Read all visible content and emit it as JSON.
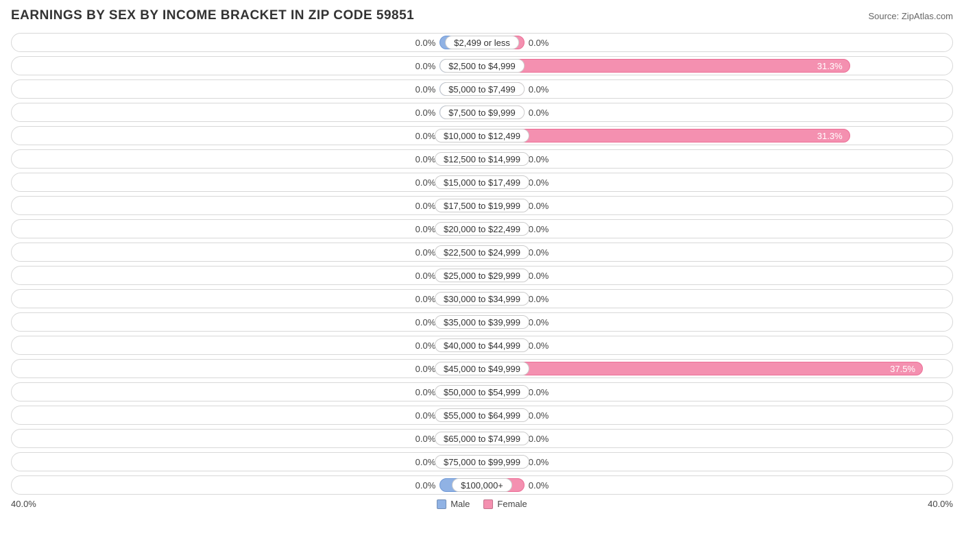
{
  "title": "EARNINGS BY SEX BY INCOME BRACKET IN ZIP CODE 59851",
  "source": "Source: ZipAtlas.com",
  "axis_max_pct": 40.0,
  "axis_left_label": "40.0%",
  "axis_right_label": "40.0%",
  "stub_min_pct": 3.6,
  "colors": {
    "male_fill": "#90b2e4",
    "male_border": "#6f98d6",
    "female_fill": "#f490b0",
    "female_border": "#ec6e96",
    "row_border": "#d8d8d8",
    "label_border": "#cccccc",
    "text": "#333333",
    "background": "#ffffff"
  },
  "legend": {
    "male": "Male",
    "female": "Female"
  },
  "rows": [
    {
      "label": "$2,499 or less",
      "male": 0.0,
      "female": 0.0
    },
    {
      "label": "$2,500 to $4,999",
      "male": 0.0,
      "female": 31.3
    },
    {
      "label": "$5,000 to $7,499",
      "male": 0.0,
      "female": 0.0
    },
    {
      "label": "$7,500 to $9,999",
      "male": 0.0,
      "female": 0.0
    },
    {
      "label": "$10,000 to $12,499",
      "male": 0.0,
      "female": 31.3
    },
    {
      "label": "$12,500 to $14,999",
      "male": 0.0,
      "female": 0.0
    },
    {
      "label": "$15,000 to $17,499",
      "male": 0.0,
      "female": 0.0
    },
    {
      "label": "$17,500 to $19,999",
      "male": 0.0,
      "female": 0.0
    },
    {
      "label": "$20,000 to $22,499",
      "male": 0.0,
      "female": 0.0
    },
    {
      "label": "$22,500 to $24,999",
      "male": 0.0,
      "female": 0.0
    },
    {
      "label": "$25,000 to $29,999",
      "male": 0.0,
      "female": 0.0
    },
    {
      "label": "$30,000 to $34,999",
      "male": 0.0,
      "female": 0.0
    },
    {
      "label": "$35,000 to $39,999",
      "male": 0.0,
      "female": 0.0
    },
    {
      "label": "$40,000 to $44,999",
      "male": 0.0,
      "female": 0.0
    },
    {
      "label": "$45,000 to $49,999",
      "male": 0.0,
      "female": 37.5
    },
    {
      "label": "$50,000 to $54,999",
      "male": 0.0,
      "female": 0.0
    },
    {
      "label": "$55,000 to $64,999",
      "male": 0.0,
      "female": 0.0
    },
    {
      "label": "$65,000 to $74,999",
      "male": 0.0,
      "female": 0.0
    },
    {
      "label": "$75,000 to $99,999",
      "male": 0.0,
      "female": 0.0
    },
    {
      "label": "$100,000+",
      "male": 0.0,
      "female": 0.0
    }
  ]
}
